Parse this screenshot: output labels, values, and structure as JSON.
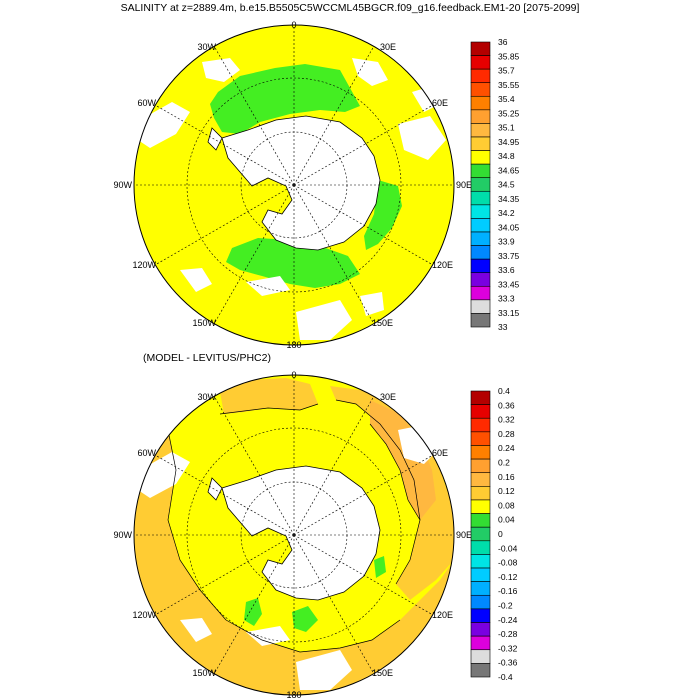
{
  "panel_top": {
    "title": "SALINITY at z=2889.4m, b.e15.B5505C5WCCML45BGCR.f09_g16.feedback.EM1-20 [2075-2099]",
    "lon_labels": [
      "0",
      "30E",
      "60E",
      "90E",
      "120E",
      "150E",
      "180",
      "150W",
      "120W",
      "90W",
      "60W",
      "30W"
    ],
    "colorbar": {
      "labels": [
        "36",
        "35.85",
        "35.7",
        "35.55",
        "35.4",
        "35.25",
        "35.1",
        "34.95",
        "34.8",
        "34.65",
        "34.5",
        "34.35",
        "34.2",
        "34.05",
        "33.9",
        "33.75",
        "33.6",
        "33.45",
        "33.3",
        "33.15",
        "33"
      ],
      "colors": [
        "#b30000",
        "#e60000",
        "#ff2a00",
        "#ff5000",
        "#ff8000",
        "#ffa030",
        "#ffb840",
        "#ffcc33",
        "#ffff00",
        "#33dd33",
        "#22cc66",
        "#00ddaa",
        "#00e5e5",
        "#00ccff",
        "#00b0ff",
        "#0088ff",
        "#0000ff",
        "#7a00e0",
        "#dd00dd",
        "#dddddd",
        "#777777"
      ]
    }
  },
  "panel_bottom": {
    "title": "(MODEL - LEVITUS/PHC2)",
    "lon_labels": [
      "0",
      "30E",
      "60E",
      "90E",
      "120E",
      "150E",
      "180",
      "150W",
      "120W",
      "90W",
      "60W",
      "30W"
    ],
    "colorbar": {
      "labels": [
        "0.4",
        "0.36",
        "0.32",
        "0.28",
        "0.24",
        "0.2",
        "0.16",
        "0.12",
        "0.08",
        "0.04",
        "0",
        "-0.04",
        "-0.08",
        "-0.12",
        "-0.16",
        "-0.2",
        "-0.24",
        "-0.28",
        "-0.32",
        "-0.36",
        "-0.4"
      ],
      "colors": [
        "#b30000",
        "#e60000",
        "#ff2a00",
        "#ff5000",
        "#ff8000",
        "#ffa030",
        "#ffb840",
        "#ffcc33",
        "#ffff00",
        "#33dd33",
        "#22cc66",
        "#00ddaa",
        "#00e5e5",
        "#00ccff",
        "#00b0ff",
        "#0088ff",
        "#0000ff",
        "#7a00e0",
        "#dd00dd",
        "#dddddd",
        "#777777"
      ]
    }
  },
  "fill_colors": {
    "yellow": "#ffff00",
    "green": "#44ee22",
    "orange_light": "#ffcc33",
    "orange": "#ffb840",
    "land": "#ffffff"
  }
}
